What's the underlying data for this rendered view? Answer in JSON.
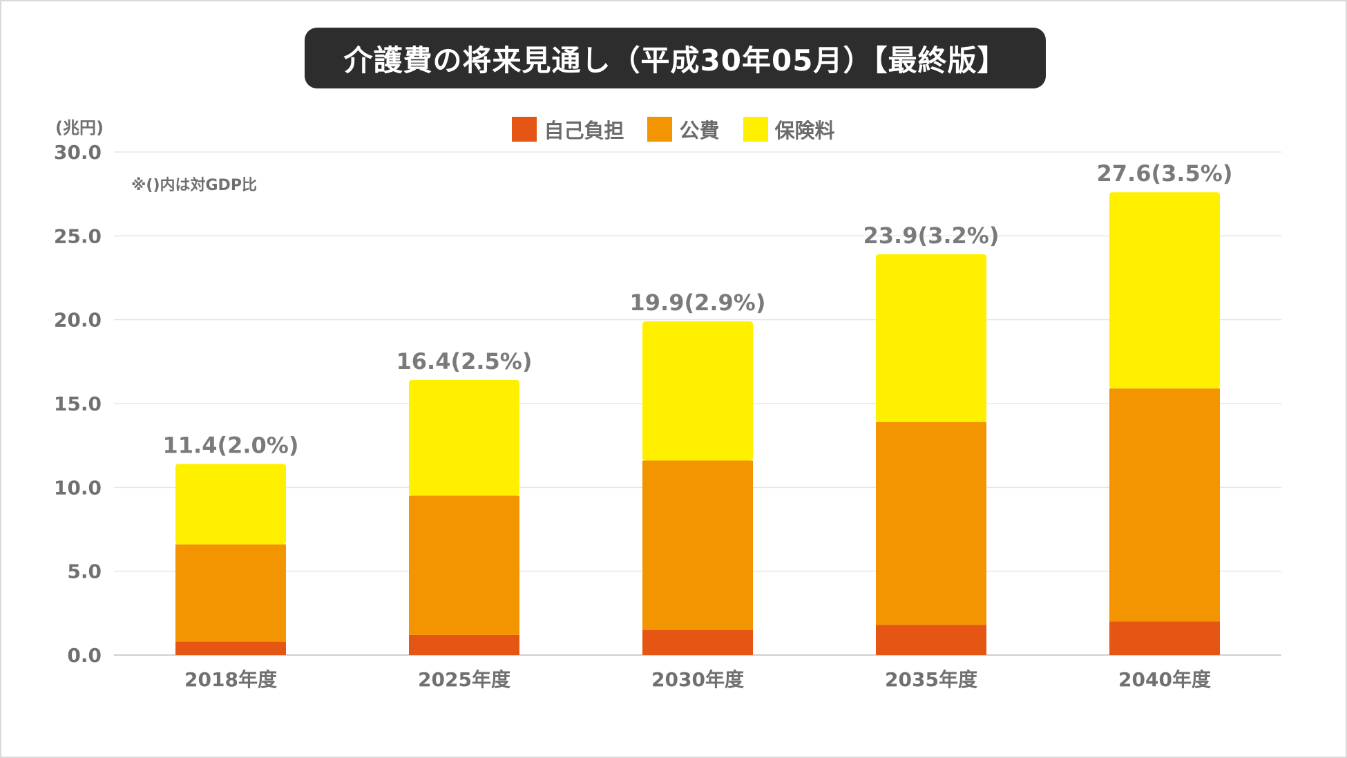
{
  "title": "介護費の将来見通し（平成30年05月）【最終版】",
  "colors": {
    "self_pay": "#e55615",
    "public": "#f29500",
    "insurance": "#fff000",
    "title_bg": "#2d2d2d",
    "grid": "#e6e6e6",
    "text": "#707070"
  },
  "chart_data": {
    "type": "bar",
    "stacked": true,
    "title": "介護費の将来見通し（平成30年05月）【最終版】",
    "ylabel": "(兆円)",
    "xlabel": "",
    "note": "※()内は対GDP比",
    "ylim": [
      0,
      30
    ],
    "yticks": [
      "0.0",
      "5.0",
      "10.0",
      "15.0",
      "20.0",
      "25.0",
      "30.0"
    ],
    "grid": true,
    "legend_position": "top-center",
    "categories": [
      "2018年度",
      "2025年度",
      "2030年度",
      "2035年度",
      "2040年度"
    ],
    "series": [
      {
        "name": "自己負担",
        "values": [
          0.8,
          1.2,
          1.5,
          1.8,
          2.0
        ]
      },
      {
        "name": "公費",
        "values": [
          5.8,
          8.3,
          10.1,
          12.1,
          13.9
        ]
      },
      {
        "name": "保険料",
        "values": [
          4.8,
          6.9,
          8.3,
          10.0,
          11.7
        ]
      }
    ],
    "totals": [
      11.4,
      16.4,
      19.9,
      23.9,
      27.6
    ],
    "total_labels": [
      "11.4(2.0%)",
      "16.4(2.5%)",
      "19.9(2.9%)",
      "23.9(3.2%)",
      "27.6(3.5%)"
    ]
  }
}
